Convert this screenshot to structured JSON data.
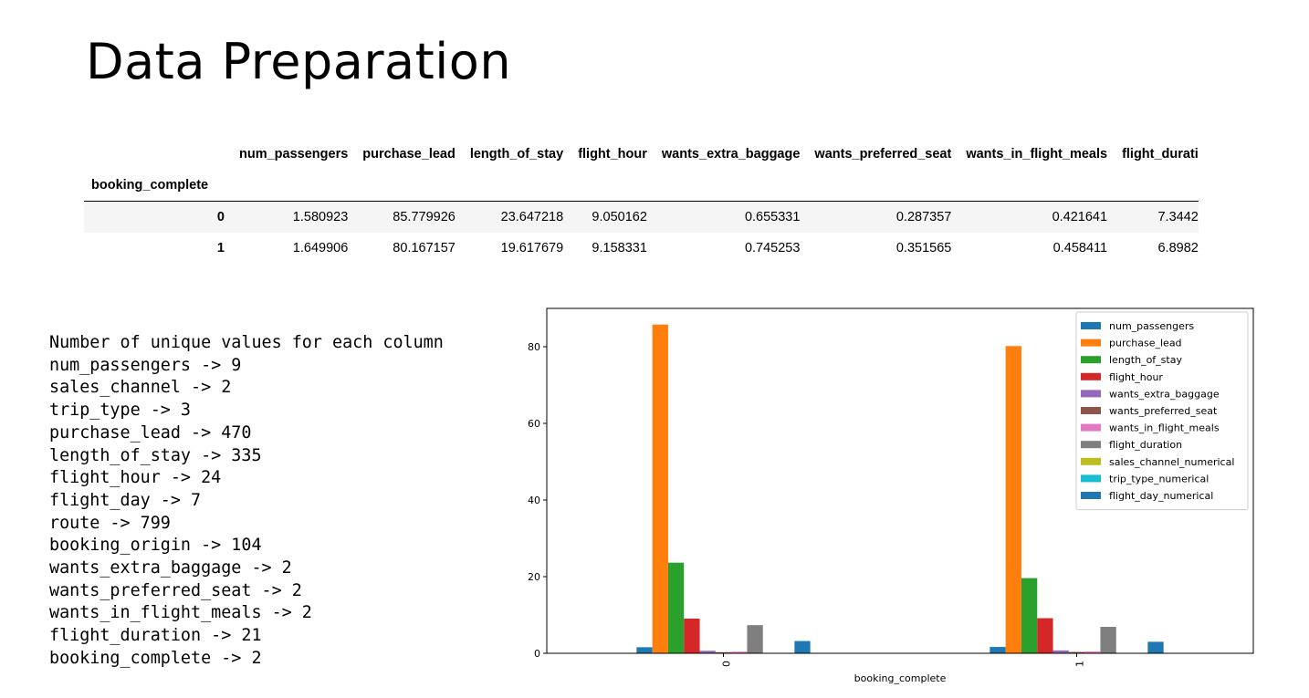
{
  "title": "Data Preparation",
  "dataframe": {
    "columns": [
      "num_passengers",
      "purchase_lead",
      "length_of_stay",
      "flight_hour",
      "wants_extra_baggage",
      "wants_preferred_seat",
      "wants_in_flight_meals",
      "flight_durati"
    ],
    "index_name": "booking_complete",
    "rows": [
      {
        "index": "0",
        "values": [
          "1.580923",
          "85.779926",
          "23.647218",
          "9.050162",
          "0.655331",
          "0.287357",
          "0.421641",
          "7.3442"
        ]
      },
      {
        "index": "1",
        "values": [
          "1.649906",
          "80.167157",
          "19.617679",
          "9.158331",
          "0.745253",
          "0.351565",
          "0.458411",
          "6.8982"
        ]
      }
    ]
  },
  "unique_values": {
    "heading": "Number of unique values for each column",
    "lines": [
      "num_passengers -> 9",
      "sales_channel -> 2",
      "trip_type -> 3",
      "purchase_lead -> 470",
      "length_of_stay -> 335",
      "flight_hour -> 24",
      "flight_day -> 7",
      "route -> 799",
      "booking_origin -> 104",
      "wants_extra_baggage -> 2",
      "wants_preferred_seat -> 2",
      "wants_in_flight_meals -> 2",
      "flight_duration -> 21",
      "booking_complete -> 2"
    ]
  },
  "chart_data": {
    "type": "bar",
    "title": "",
    "xlabel": "booking_complete",
    "ylabel": "",
    "categories": [
      "0",
      "1"
    ],
    "ylim": [
      0,
      90
    ],
    "yticks": [
      0,
      20,
      40,
      60,
      80
    ],
    "grid": false,
    "legend": "top-right",
    "series": [
      {
        "name": "num_passengers",
        "color": "#1f77b4",
        "values": [
          1.58,
          1.65
        ]
      },
      {
        "name": "purchase_lead",
        "color": "#ff7f0e",
        "values": [
          85.78,
          80.17
        ]
      },
      {
        "name": "length_of_stay",
        "color": "#2ca02c",
        "values": [
          23.65,
          19.62
        ]
      },
      {
        "name": "flight_hour",
        "color": "#d62728",
        "values": [
          9.05,
          9.16
        ]
      },
      {
        "name": "wants_extra_baggage",
        "color": "#9467bd",
        "values": [
          0.66,
          0.75
        ]
      },
      {
        "name": "wants_preferred_seat",
        "color": "#8c564b",
        "values": [
          0.29,
          0.35
        ]
      },
      {
        "name": "wants_in_flight_meals",
        "color": "#e377c2",
        "values": [
          0.42,
          0.46
        ]
      },
      {
        "name": "flight_duration",
        "color": "#7f7f7f",
        "values": [
          7.34,
          6.9
        ]
      },
      {
        "name": "sales_channel_numerical",
        "color": "#bcbd22",
        "values": [
          0.11,
          0.08
        ]
      },
      {
        "name": "trip_type_numerical",
        "color": "#17becf",
        "values": [
          0.01,
          0.004
        ]
      },
      {
        "name": "flight_day_numerical",
        "color": "#1f77b4",
        "values": [
          3.2,
          3.0
        ]
      }
    ]
  }
}
